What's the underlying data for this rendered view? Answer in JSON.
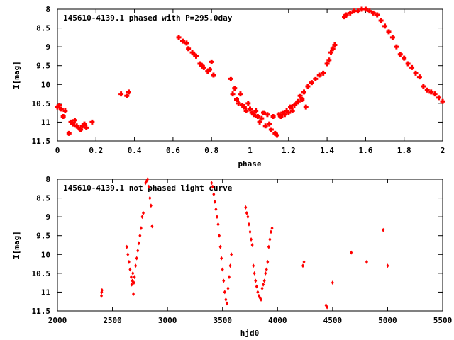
{
  "chart_data": [
    {
      "type": "scatter",
      "title": "145610-4139.1 phased with P=295.0day",
      "xlabel": "phase",
      "ylabel": "I[mag]",
      "xlim": [
        0,
        2
      ],
      "ylim": [
        11.5,
        8
      ],
      "y_inverted": true,
      "xticks": [
        "0",
        "0.2",
        "0.4",
        "0.6",
        "0.8",
        "1",
        "1.2",
        "1.4",
        "1.6",
        "1.8",
        "2"
      ],
      "yticks": [
        "8",
        "8.5",
        "9",
        "9.5",
        "10",
        "10.5",
        "11",
        "11.5"
      ],
      "color": "#ff0000",
      "marker": "cross",
      "series": [
        {
          "x": [
            0.0,
            0.01,
            0.02,
            0.03,
            0.04,
            0.06,
            0.07,
            0.08,
            0.09,
            0.1,
            0.11,
            0.12,
            0.13,
            0.14,
            0.15,
            0.18,
            0.33,
            0.36,
            0.37,
            0.63,
            0.65,
            0.67,
            0.68,
            0.7,
            0.71,
            0.72,
            0.74,
            0.75,
            0.76,
            0.78,
            0.79,
            0.8,
            0.81,
            0.9,
            0.91,
            0.92,
            0.93,
            0.94,
            0.95,
            0.96,
            0.97,
            0.98,
            0.99,
            1.0,
            1.01,
            1.02,
            1.03,
            1.04,
            1.05,
            1.06,
            1.07,
            1.08,
            1.09,
            1.1,
            1.11,
            1.12,
            1.13,
            1.14,
            1.15,
            1.16,
            1.17,
            1.18,
            1.19,
            1.2,
            1.21,
            1.22,
            1.23,
            1.24,
            1.25,
            1.26,
            1.27,
            1.28,
            1.29,
            1.3,
            1.32,
            1.34,
            1.36,
            1.38,
            1.4,
            1.41,
            1.42,
            1.43,
            1.44,
            1.49,
            1.5,
            1.52,
            1.54,
            1.56,
            1.58,
            1.6,
            1.62,
            1.64,
            1.66,
            1.68,
            1.7,
            1.72,
            1.74,
            1.76,
            1.78,
            1.8,
            1.82,
            1.84,
            1.86,
            1.88,
            1.9,
            1.92,
            1.94,
            1.96,
            1.98,
            2.0
          ],
          "y": [
            10.6,
            10.55,
            10.65,
            10.85,
            10.7,
            11.3,
            11.0,
            11.05,
            10.95,
            11.1,
            11.15,
            11.2,
            11.1,
            11.05,
            11.15,
            11.0,
            10.25,
            10.3,
            10.2,
            8.75,
            8.85,
            8.9,
            9.05,
            9.15,
            9.2,
            9.25,
            9.45,
            9.5,
            9.55,
            9.65,
            9.6,
            9.4,
            9.75,
            9.85,
            10.25,
            10.1,
            10.4,
            10.5,
            10.25,
            10.55,
            10.6,
            10.7,
            10.5,
            10.65,
            10.75,
            10.8,
            10.7,
            10.85,
            11.0,
            10.9,
            10.75,
            11.1,
            10.8,
            11.05,
            11.2,
            10.85,
            11.3,
            11.35,
            10.8,
            10.85,
            10.75,
            10.8,
            10.7,
            10.75,
            10.6,
            10.7,
            10.55,
            10.5,
            10.45,
            10.3,
            10.4,
            10.2,
            10.6,
            10.05,
            9.95,
            9.85,
            9.75,
            9.7,
            9.45,
            9.35,
            9.15,
            9.05,
            8.95,
            8.2,
            8.15,
            8.1,
            8.05,
            8.05,
            8.0,
            8.0,
            8.05,
            8.1,
            8.15,
            8.3,
            8.45,
            8.6,
            8.75,
            9.0,
            9.2,
            9.3,
            9.45,
            9.55,
            9.7,
            9.8,
            10.05,
            10.15,
            10.2,
            10.25,
            10.35,
            10.45
          ]
        }
      ]
    },
    {
      "type": "scatter",
      "title": "145610-4139.1 not phased light curve",
      "xlabel": "hjd0",
      "ylabel": "I[mag]",
      "xlim": [
        2000,
        5500
      ],
      "ylim": [
        11.5,
        8
      ],
      "y_inverted": true,
      "xticks": [
        "2000",
        "2500",
        "3000",
        "3500",
        "4000",
        "4500",
        "5000",
        "5500"
      ],
      "yticks": [
        "8",
        "8.5",
        "9",
        "9.5",
        "10",
        "10.5",
        "11",
        "11.5"
      ],
      "color": "#ff0000",
      "marker": "diamond",
      "series": [
        {
          "x": [
            2400,
            2402,
            2405,
            2630,
            2640,
            2650,
            2660,
            2670,
            2675,
            2680,
            2685,
            2690,
            2695,
            2700,
            2710,
            2720,
            2730,
            2740,
            2750,
            2760,
            2770,
            2780,
            2800,
            2810,
            2820,
            2830,
            2840,
            2850,
            2860,
            3400,
            3410,
            3420,
            3430,
            3440,
            3450,
            3460,
            3470,
            3480,
            3490,
            3500,
            3510,
            3520,
            3530,
            3540,
            3550,
            3560,
            3570,
            3580,
            3710,
            3720,
            3730,
            3740,
            3750,
            3760,
            3770,
            3780,
            3790,
            3800,
            3810,
            3820,
            3830,
            3840,
            3850,
            3860,
            3870,
            3880,
            3890,
            3900,
            3910,
            3920,
            3930,
            3940,
            3950,
            4230,
            4240,
            4440,
            4450,
            4500,
            4670,
            4810,
            4960,
            5000
          ],
          "y": [
            11.1,
            11.0,
            10.95,
            9.8,
            10.0,
            10.2,
            10.4,
            10.6,
            10.8,
            10.7,
            10.5,
            11.05,
            10.75,
            10.6,
            10.3,
            10.1,
            9.9,
            9.7,
            9.5,
            9.3,
            9.0,
            8.9,
            8.1,
            8.05,
            8.0,
            8.2,
            8.5,
            8.7,
            9.25,
            8.1,
            8.2,
            8.4,
            8.6,
            8.8,
            9.0,
            9.2,
            9.5,
            9.8,
            10.1,
            10.4,
            10.7,
            11.0,
            11.2,
            11.3,
            10.9,
            10.6,
            10.3,
            10.0,
            8.75,
            8.9,
            9.0,
            9.2,
            9.4,
            9.6,
            9.75,
            10.3,
            10.5,
            10.7,
            10.85,
            11.0,
            11.1,
            11.15,
            11.2,
            10.9,
            10.8,
            10.7,
            10.5,
            10.4,
            10.2,
            9.8,
            9.6,
            9.4,
            9.3,
            10.3,
            10.2,
            11.35,
            11.4,
            10.75,
            9.95,
            10.2,
            9.35,
            10.3
          ]
        }
      ]
    }
  ]
}
